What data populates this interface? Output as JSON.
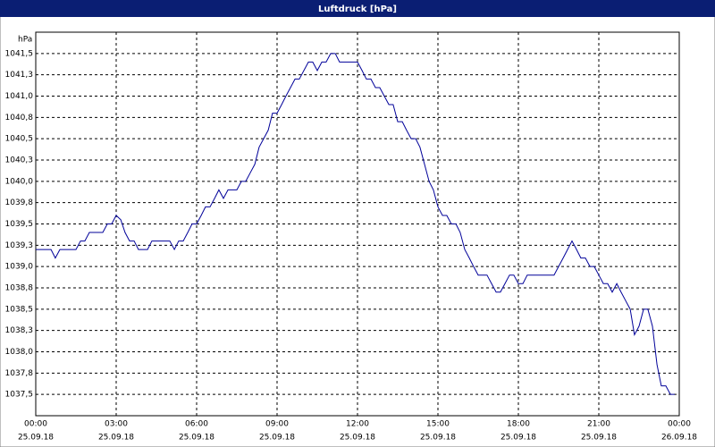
{
  "window_title": "Luftdruck [hPa]",
  "chart_data": {
    "type": "line",
    "y_unit": "hPa",
    "x": [
      0,
      0.57,
      0.73,
      0.9,
      1.5,
      1.67,
      1.83,
      2,
      2.5,
      2.67,
      2.83,
      3,
      3.17,
      3.33,
      3.5,
      3.67,
      3.83,
      4.17,
      4.33,
      5,
      5.17,
      5.33,
      5.5,
      5.67,
      5.83,
      6,
      6.17,
      6.33,
      6.5,
      6.67,
      6.83,
      7,
      7.17,
      7.5,
      7.67,
      7.83,
      8,
      8.17,
      8.33,
      8.5,
      8.67,
      8.83,
      9,
      9.17,
      9.33,
      9.5,
      9.67,
      9.83,
      10,
      10.17,
      10.33,
      10.5,
      10.67,
      10.83,
      11,
      11.17,
      11.33,
      12,
      12.17,
      12.33,
      12.5,
      12.67,
      12.83,
      13,
      13.17,
      13.33,
      13.5,
      13.67,
      13.83,
      14,
      14.17,
      14.33,
      14.5,
      14.67,
      14.83,
      15,
      15.17,
      15.33,
      15.5,
      15.67,
      15.83,
      16,
      16.17,
      16.33,
      16.5,
      16.83,
      17,
      17.17,
      17.33,
      17.5,
      17.67,
      17.83,
      18,
      18.17,
      18.33,
      19.33,
      19.5,
      19.67,
      20,
      20.17,
      20.33,
      20.5,
      20.67,
      20.83,
      21,
      21.17,
      21.33,
      21.5,
      21.67,
      21.83,
      22,
      22.17,
      22.33,
      22.5,
      22.67,
      22.83,
      23,
      23.17,
      23.33,
      23.5,
      23.67,
      23.83
    ],
    "series": [
      {
        "name": "Luftdruck",
        "color": "#000099",
        "values": [
          1039.2,
          1039.2,
          1039.1,
          1039.2,
          1039.2,
          1039.3,
          1039.3,
          1039.4,
          1039.4,
          1039.5,
          1039.5,
          1039.6,
          1039.55,
          1039.4,
          1039.3,
          1039.3,
          1039.2,
          1039.2,
          1039.3,
          1039.3,
          1039.2,
          1039.3,
          1039.3,
          1039.4,
          1039.5,
          1039.5,
          1039.6,
          1039.7,
          1039.7,
          1039.8,
          1039.9,
          1039.8,
          1039.9,
          1039.9,
          1040.0,
          1040.0,
          1040.1,
          1040.2,
          1040.4,
          1040.5,
          1040.6,
          1040.8,
          1040.8,
          1040.9,
          1041.0,
          1041.1,
          1041.2,
          1041.2,
          1041.3,
          1041.4,
          1041.4,
          1041.3,
          1041.4,
          1041.4,
          1041.5,
          1041.5,
          1041.4,
          1041.4,
          1041.3,
          1041.2,
          1041.2,
          1041.1,
          1041.1,
          1041.0,
          1040.9,
          1040.9,
          1040.7,
          1040.7,
          1040.6,
          1040.5,
          1040.5,
          1040.4,
          1040.2,
          1040.0,
          1039.9,
          1039.7,
          1039.6,
          1039.6,
          1039.5,
          1039.5,
          1039.4,
          1039.2,
          1039.1,
          1039.0,
          1038.9,
          1038.9,
          1038.8,
          1038.7,
          1038.7,
          1038.8,
          1038.9,
          1038.9,
          1038.8,
          1038.8,
          1038.9,
          1038.9,
          1039.0,
          1039.1,
          1039.3,
          1039.2,
          1039.1,
          1039.1,
          1039.0,
          1039.0,
          1038.9,
          1038.8,
          1038.8,
          1038.7,
          1038.8,
          1038.7,
          1038.6,
          1038.5,
          1038.2,
          1038.3,
          1038.5,
          1038.5,
          1038.3,
          1037.85,
          1037.6,
          1037.6,
          1037.5,
          1037.5
        ]
      }
    ],
    "xlim": [
      0,
      24
    ],
    "xticks": [
      {
        "value": 0,
        "label": "00:00"
      },
      {
        "value": 3,
        "label": "03:00"
      },
      {
        "value": 6,
        "label": "06:00"
      },
      {
        "value": 9,
        "label": "09:00"
      },
      {
        "value": 12,
        "label": "12:00"
      },
      {
        "value": 15,
        "label": "15:00"
      },
      {
        "value": 18,
        "label": "18:00"
      },
      {
        "value": 21,
        "label": "21:00"
      },
      {
        "value": 24,
        "label": "00:00"
      }
    ],
    "xtick_dates": [
      "25.09.18",
      "25.09.18",
      "25.09.18",
      "25.09.18",
      "25.09.18",
      "25.09.18",
      "25.09.18",
      "25.09.18",
      "26.09.18"
    ],
    "ylim": [
      1037.25,
      1041.75
    ],
    "yticks": [
      {
        "value": 1041.5,
        "label": "1041,5"
      },
      {
        "value": 1041.25,
        "label": "1041,3"
      },
      {
        "value": 1041,
        "label": "1041,0"
      },
      {
        "value": 1040.75,
        "label": "1040,8"
      },
      {
        "value": 1040.5,
        "label": "1040,5"
      },
      {
        "value": 1040.25,
        "label": "1040,3"
      },
      {
        "value": 1040,
        "label": "1040,0"
      },
      {
        "value": 1039.75,
        "label": "1039,8"
      },
      {
        "value": 1039.5,
        "label": "1039,5"
      },
      {
        "value": 1039.25,
        "label": "1039,3"
      },
      {
        "value": 1039,
        "label": "1039,0"
      },
      {
        "value": 1038.75,
        "label": "1038,8"
      },
      {
        "value": 1038.5,
        "label": "1038,5"
      },
      {
        "value": 1038.25,
        "label": "1038,3"
      },
      {
        "value": 1038,
        "label": "1038,0"
      },
      {
        "value": 1037.75,
        "label": "1037,8"
      },
      {
        "value": 1037.5,
        "label": "1037,5"
      }
    ],
    "grid": true
  }
}
